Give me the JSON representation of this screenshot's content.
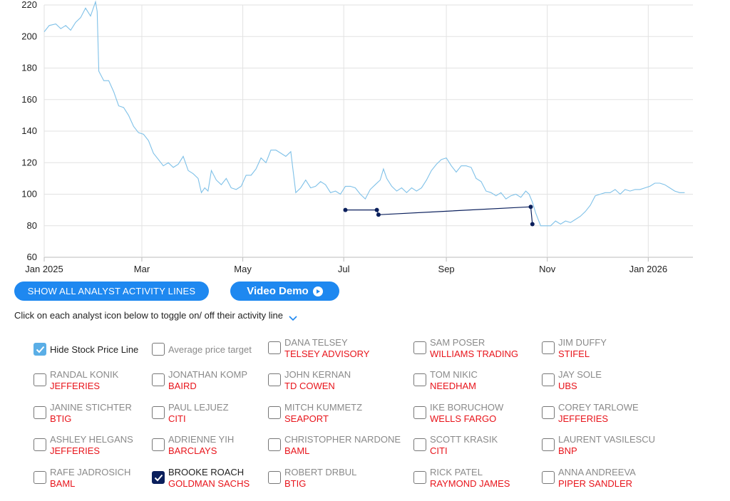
{
  "chart_data": {
    "type": "line",
    "x_axis": {
      "min": "2025-01-01",
      "max": "2026-01-28",
      "tick_labels": [
        "Jan 2025",
        "Mar",
        "May",
        "Jul",
        "Sep",
        "Nov",
        "Jan 2026"
      ],
      "tick_dates": [
        "2025-01-01",
        "2025-03-01",
        "2025-05-01",
        "2025-07-01",
        "2025-09-01",
        "2025-11-01",
        "2026-01-01"
      ]
    },
    "y_axis": {
      "min": 60,
      "max": 220,
      "ticks": [
        60,
        80,
        100,
        120,
        140,
        160,
        180,
        200,
        220
      ]
    },
    "grid": true,
    "series": [
      {
        "color": "#7fc1e8",
        "points": [
          [
            "2025-01-01",
            203
          ],
          [
            "2025-01-04",
            207
          ],
          [
            "2025-01-08",
            208
          ],
          [
            "2025-01-11",
            205
          ],
          [
            "2025-01-14",
            207
          ],
          [
            "2025-01-17",
            204
          ],
          [
            "2025-01-20",
            209
          ],
          [
            "2025-01-23",
            212
          ],
          [
            "2025-01-26",
            218
          ],
          [
            "2025-01-29",
            213
          ],
          [
            "2025-02-01",
            222
          ],
          [
            "2025-02-02",
            216
          ],
          [
            "2025-02-03",
            178
          ],
          [
            "2025-02-06",
            172
          ],
          [
            "2025-02-09",
            172
          ],
          [
            "2025-02-12",
            165
          ],
          [
            "2025-02-15",
            156
          ],
          [
            "2025-02-18",
            155
          ],
          [
            "2025-02-21",
            150
          ],
          [
            "2025-02-24",
            143
          ],
          [
            "2025-02-27",
            139
          ],
          [
            "2025-03-02",
            138
          ],
          [
            "2025-03-05",
            134
          ],
          [
            "2025-03-08",
            126
          ],
          [
            "2025-03-11",
            122
          ],
          [
            "2025-03-14",
            118
          ],
          [
            "2025-03-17",
            120
          ],
          [
            "2025-03-20",
            117
          ],
          [
            "2025-03-23",
            119
          ],
          [
            "2025-03-26",
            124
          ],
          [
            "2025-03-29",
            115
          ],
          [
            "2025-04-01",
            113
          ],
          [
            "2025-04-04",
            110
          ],
          [
            "2025-04-06",
            101
          ],
          [
            "2025-04-08",
            104
          ],
          [
            "2025-04-10",
            102
          ],
          [
            "2025-04-12",
            115
          ],
          [
            "2025-04-15",
            109
          ],
          [
            "2025-04-18",
            106
          ],
          [
            "2025-04-21",
            110
          ],
          [
            "2025-04-24",
            104
          ],
          [
            "2025-04-27",
            103
          ],
          [
            "2025-04-30",
            105
          ],
          [
            "2025-05-03",
            112
          ],
          [
            "2025-05-06",
            112
          ],
          [
            "2025-05-09",
            116
          ],
          [
            "2025-05-12",
            123
          ],
          [
            "2025-05-15",
            120
          ],
          [
            "2025-05-18",
            128
          ],
          [
            "2025-05-21",
            128
          ],
          [
            "2025-05-24",
            126
          ],
          [
            "2025-05-27",
            124
          ],
          [
            "2025-05-30",
            127
          ],
          [
            "2025-06-02",
            101
          ],
          [
            "2025-06-05",
            104
          ],
          [
            "2025-06-08",
            109
          ],
          [
            "2025-06-11",
            104
          ],
          [
            "2025-06-14",
            105
          ],
          [
            "2025-06-17",
            108
          ],
          [
            "2025-06-20",
            106
          ],
          [
            "2025-06-23",
            101
          ],
          [
            "2025-06-26",
            102
          ],
          [
            "2025-06-29",
            100
          ],
          [
            "2025-07-02",
            105
          ],
          [
            "2025-07-05",
            105
          ],
          [
            "2025-07-08",
            104
          ],
          [
            "2025-07-11",
            100
          ],
          [
            "2025-07-14",
            97
          ],
          [
            "2025-07-17",
            103
          ],
          [
            "2025-07-20",
            106
          ],
          [
            "2025-07-23",
            109
          ],
          [
            "2025-07-25",
            116
          ],
          [
            "2025-07-27",
            110
          ],
          [
            "2025-07-30",
            105
          ],
          [
            "2025-08-02",
            102
          ],
          [
            "2025-08-05",
            104
          ],
          [
            "2025-08-08",
            101
          ],
          [
            "2025-08-11",
            104
          ],
          [
            "2025-08-14",
            102
          ],
          [
            "2025-08-17",
            104
          ],
          [
            "2025-08-20",
            109
          ],
          [
            "2025-08-23",
            115
          ],
          [
            "2025-08-26",
            119
          ],
          [
            "2025-08-29",
            122
          ],
          [
            "2025-09-01",
            123
          ],
          [
            "2025-09-04",
            118
          ],
          [
            "2025-09-07",
            114
          ],
          [
            "2025-09-10",
            118
          ],
          [
            "2025-09-13",
            118
          ],
          [
            "2025-09-16",
            117
          ],
          [
            "2025-09-19",
            110
          ],
          [
            "2025-09-22",
            108
          ],
          [
            "2025-09-25",
            102
          ],
          [
            "2025-09-28",
            101
          ],
          [
            "2025-10-01",
            99
          ],
          [
            "2025-10-04",
            101
          ],
          [
            "2025-10-07",
            97
          ],
          [
            "2025-10-10",
            99
          ],
          [
            "2025-10-13",
            100
          ],
          [
            "2025-10-16",
            98
          ],
          [
            "2025-10-19",
            102
          ],
          [
            "2025-10-21",
            100
          ],
          [
            "2025-10-23",
            95
          ],
          [
            "2025-10-25",
            88
          ],
          [
            "2025-10-28",
            80
          ],
          [
            "2025-10-31",
            80
          ],
          [
            "2025-11-03",
            80
          ],
          [
            "2025-11-06",
            83
          ],
          [
            "2025-11-09",
            81
          ],
          [
            "2025-11-12",
            83
          ],
          [
            "2025-11-15",
            82
          ],
          [
            "2025-11-18",
            84
          ],
          [
            "2025-11-21",
            86
          ],
          [
            "2025-11-24",
            89
          ],
          [
            "2025-11-27",
            93
          ],
          [
            "2025-11-30",
            99
          ],
          [
            "2025-12-03",
            100
          ],
          [
            "2025-12-06",
            101
          ],
          [
            "2025-12-09",
            101
          ],
          [
            "2025-12-12",
            103
          ],
          [
            "2025-12-15",
            100
          ],
          [
            "2025-12-18",
            103
          ],
          [
            "2025-12-21",
            102
          ],
          [
            "2025-12-24",
            103
          ],
          [
            "2025-12-27",
            103
          ],
          [
            "2025-12-30",
            104
          ],
          [
            "2026-01-02",
            105
          ],
          [
            "2026-01-05",
            107
          ],
          [
            "2026-01-08",
            107
          ],
          [
            "2026-01-11",
            106
          ],
          [
            "2026-01-14",
            104
          ],
          [
            "2026-01-17",
            102
          ],
          [
            "2026-01-20",
            101
          ],
          [
            "2026-01-23",
            101
          ]
        ]
      },
      {
        "color": "#0a1f5c",
        "points": [
          [
            "2025-07-02",
            90
          ],
          [
            "2025-07-21",
            90
          ],
          [
            "2025-07-22",
            87
          ],
          [
            "2025-10-22",
            92
          ],
          [
            "2025-10-23",
            81
          ]
        ]
      }
    ]
  },
  "buttons": {
    "show_activity": "SHOW ALL ANALYST ACTIVITY LINES",
    "video_demo": "Video Demo"
  },
  "instruction": "Click on each analyst icon below to toggle on/ off their activity line",
  "options": {
    "hide_price": {
      "label": "Hide Stock Price Line",
      "checked": true
    },
    "average_target": {
      "label": "Average price target",
      "checked": false
    }
  },
  "analysts": [
    {
      "name": "DANA TELSEY",
      "firm": "TELSEY ADVISORY",
      "checked": false
    },
    {
      "name": "SAM POSER",
      "firm": "WILLIAMS TRADING",
      "checked": false
    },
    {
      "name": "JIM DUFFY",
      "firm": "STIFEL",
      "checked": false
    },
    {
      "name": "RANDAL KONIK",
      "firm": "JEFFERIES",
      "checked": false
    },
    {
      "name": "JONATHAN KOMP",
      "firm": "BAIRD",
      "checked": false
    },
    {
      "name": "JOHN KERNAN",
      "firm": "TD COWEN",
      "checked": false
    },
    {
      "name": "TOM NIKIC",
      "firm": "NEEDHAM",
      "checked": false
    },
    {
      "name": "JAY SOLE",
      "firm": "UBS",
      "checked": false
    },
    {
      "name": "JANINE STICHTER",
      "firm": "BTIG",
      "checked": false
    },
    {
      "name": "PAUL LEJUEZ",
      "firm": "CITI",
      "checked": false
    },
    {
      "name": "MITCH KUMMETZ",
      "firm": "SEAPORT",
      "checked": false
    },
    {
      "name": "IKE BORUCHOW",
      "firm": "WELLS FARGO",
      "checked": false
    },
    {
      "name": "COREY TARLOWE",
      "firm": "JEFFERIES",
      "checked": false
    },
    {
      "name": "ASHLEY HELGANS",
      "firm": "JEFFERIES",
      "checked": false
    },
    {
      "name": "ADRIENNE YIH",
      "firm": "BARCLAYS",
      "checked": false
    },
    {
      "name": "CHRISTOPHER NARDONE",
      "firm": "BAML",
      "checked": false
    },
    {
      "name": "SCOTT KRASIK",
      "firm": "CITI",
      "checked": false
    },
    {
      "name": "LAURENT VASILESCU",
      "firm": "BNP",
      "checked": false
    },
    {
      "name": "RAFE JADROSICH",
      "firm": "BAML",
      "checked": false
    },
    {
      "name": "BROOKE ROACH",
      "firm": "GOLDMAN SACHS",
      "checked": true
    },
    {
      "name": "ROBERT DRBUL",
      "firm": "BTIG",
      "checked": false
    },
    {
      "name": "RICK PATEL",
      "firm": "RAYMOND JAMES",
      "checked": false
    },
    {
      "name": "ANNA ANDREEVA",
      "firm": "PIPER SANDLER",
      "checked": false
    }
  ]
}
